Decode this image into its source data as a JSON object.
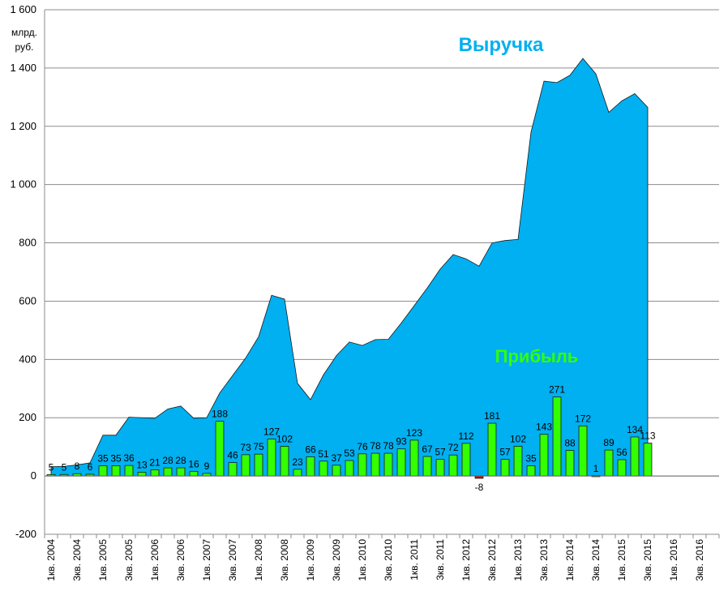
{
  "chart_data": {
    "type": "area+bar",
    "ylim": [
      -200,
      1600
    ],
    "yticks": [
      -200,
      0,
      200,
      400,
      600,
      800,
      1000,
      1200,
      1400,
      1600
    ],
    "ytick_labels": [
      "-200",
      "0",
      "200",
      "400",
      "600",
      "800",
      "1 000",
      "1 200",
      "1 400",
      "1 600"
    ],
    "unit_line1": "млрд.",
    "unit_line2": "руб.",
    "grid": true,
    "categories": [
      "1кв. 2004",
      "",
      "3кв. 2004",
      "",
      "1кв. 2005",
      "",
      "3кв. 2005",
      "",
      "1кв. 2006",
      "",
      "3кв. 2006",
      "",
      "1кв. 2007",
      "",
      "3кв. 2007",
      "",
      "1кв. 2008",
      "",
      "3кв. 2008",
      "",
      "1кв. 2009",
      "",
      "3кв. 2009",
      "",
      "1кв. 2010",
      "",
      "3кв. 2010",
      "",
      "1кв. 2011",
      "",
      "3кв. 2011",
      "",
      "1кв. 2012",
      "",
      "3кв. 2012",
      "",
      "1кв. 2013",
      "",
      "3кв. 2013",
      "",
      "1кв. 2014",
      "",
      "3кв. 2014",
      "",
      "1кв. 2015",
      "",
      "3кв. 2015",
      "",
      "1кв. 2016",
      "",
      "3кв. 2016",
      ""
    ],
    "series": [
      {
        "name": "Выручка",
        "kind": "area",
        "color": "#00B0F0",
        "values": [
          32,
          33,
          38,
          45,
          140,
          140,
          202,
          200,
          198,
          230,
          240,
          198,
          200,
          285,
          345,
          405,
          478,
          620,
          607,
          318,
          262,
          347,
          413,
          460,
          448,
          468,
          469,
          525,
          585,
          645,
          710,
          760,
          745,
          720,
          800,
          808,
          812,
          1180,
          1355,
          1350,
          1375,
          1433,
          1380,
          1248,
          1287,
          1312,
          1265,
          null,
          null,
          null,
          null,
          null
        ]
      },
      {
        "name": "Прибыль",
        "kind": "bar",
        "color": "#33FF00",
        "negative_color": "#CC0000",
        "values": [
          5,
          5,
          8,
          6,
          35,
          35,
          36,
          13,
          21,
          28,
          28,
          16,
          9,
          188,
          46,
          73,
          75,
          127,
          102,
          23,
          66,
          51,
          37,
          53,
          76,
          78,
          78,
          93,
          123,
          67,
          57,
          72,
          112,
          -8,
          181,
          57,
          102,
          35,
          143,
          271,
          88,
          172,
          1,
          89,
          56,
          134,
          113,
          null,
          null,
          null,
          null,
          null
        ],
        "labels": [
          "5",
          "5",
          "8",
          "6",
          "35",
          "35",
          "36",
          "13",
          "21",
          "28",
          "28",
          "16",
          "9",
          "188",
          "46",
          "73",
          "75",
          "127",
          "102",
          "23",
          "66",
          "51",
          "37",
          "53",
          "76",
          "78",
          "78",
          "93",
          "123",
          "67",
          "57",
          "72",
          "112",
          "-8",
          "181",
          "57",
          "102",
          "35",
          "143",
          "271",
          "88",
          "172",
          "1",
          "89",
          "56",
          "134",
          "113",
          "",
          "",
          "",
          "",
          ""
        ]
      }
    ]
  }
}
